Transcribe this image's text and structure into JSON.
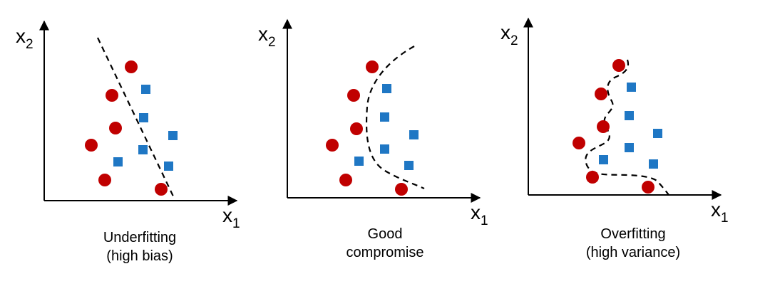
{
  "colors": {
    "class_a": "#c00000",
    "class_b": "#1f77c4",
    "axis": "#000000",
    "boundary": "#000000"
  },
  "panels": [
    {
      "id": "underfitting",
      "x_label": "x",
      "x_sub": "1",
      "y_label": "x",
      "y_sub": "2",
      "caption_line1": "Underfitting",
      "caption_line2": "(high bias)"
    },
    {
      "id": "good",
      "x_label": "x",
      "x_sub": "1",
      "y_label": "x",
      "y_sub": "2",
      "caption_line1": "Good",
      "caption_line2": "compromise"
    },
    {
      "id": "overfitting",
      "x_label": "x",
      "x_sub": "1",
      "y_label": "x",
      "y_sub": "2",
      "caption_line1": "Overfitting",
      "caption_line2": "(high variance)"
    }
  ]
}
